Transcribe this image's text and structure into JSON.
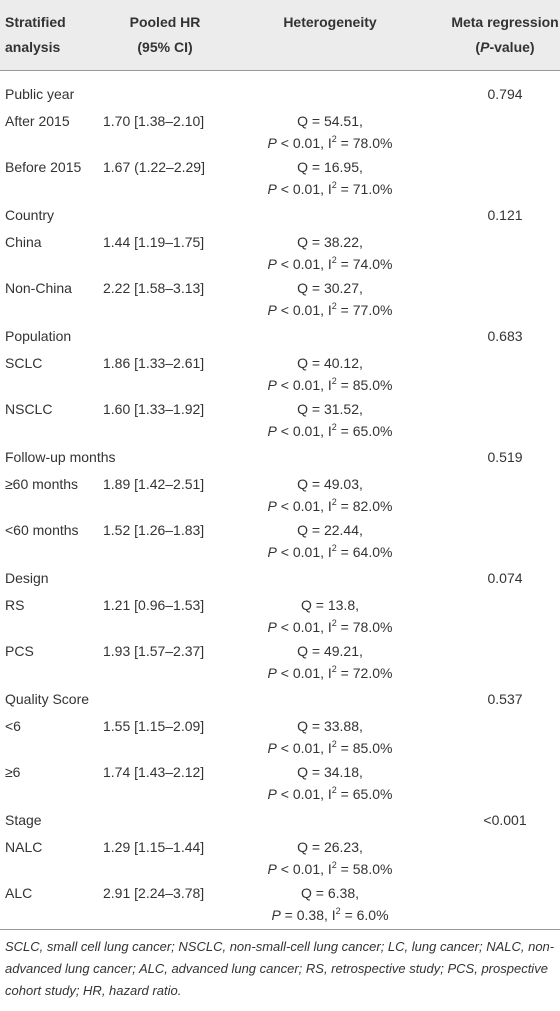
{
  "header": {
    "columns": [
      {
        "lines": [
          "Stratified",
          "analysis"
        ],
        "align": "left"
      },
      {
        "lines": [
          "Pooled HR",
          "(95% CI)"
        ],
        "align": "center"
      },
      {
        "lines": [
          "Heterogeneity"
        ],
        "align": "center"
      },
      {
        "lines": [
          "Meta regression",
          [
            "(",
            {
              "text": "P",
              "style": "italic"
            },
            "-value)"
          ]
        ],
        "align": "center"
      }
    ]
  },
  "table": {
    "groups": [
      {
        "label": "Public year",
        "p_value": "0.794",
        "rows": [
          {
            "label": "After 2015",
            "hr": "1.70 [1.38–2.10]",
            "heterogeneity": [
              "Q = 54.51,",
              [
                {
                  "text": "P",
                  "style": "italic"
                },
                " < 0.01, I",
                {
                  "text": "2",
                  "style": "sup"
                },
                " = 78.0%"
              ]
            ]
          },
          {
            "label": "Before 2015",
            "hr": "1.67 (1.22–2.29]",
            "heterogeneity": [
              "Q = 16.95,",
              [
                {
                  "text": "P",
                  "style": "italic"
                },
                " < 0.01, I",
                {
                  "text": "2",
                  "style": "sup"
                },
                " = 71.0%"
              ]
            ]
          }
        ]
      },
      {
        "label": "Country",
        "p_value": "0.121",
        "rows": [
          {
            "label": "China",
            "hr": "1.44 [1.19–1.75]",
            "heterogeneity": [
              "Q = 38.22,",
              [
                {
                  "text": "P",
                  "style": "italic"
                },
                " < 0.01, I",
                {
                  "text": "2",
                  "style": "sup"
                },
                " = 74.0%"
              ]
            ]
          },
          {
            "label": "Non-China",
            "hr": "2.22 [1.58–3.13]",
            "heterogeneity": [
              "Q = 30.27,",
              [
                {
                  "text": "P",
                  "style": "italic"
                },
                " < 0.01, I",
                {
                  "text": "2",
                  "style": "sup"
                },
                " = 77.0%"
              ]
            ]
          }
        ]
      },
      {
        "label": "Population",
        "p_value": "0.683",
        "rows": [
          {
            "label": "SCLC",
            "hr": "1.86 [1.33–2.61]",
            "heterogeneity": [
              "Q = 40.12,",
              [
                {
                  "text": "P",
                  "style": "italic"
                },
                " < 0.01, I",
                {
                  "text": "2",
                  "style": "sup"
                },
                " = 85.0%"
              ]
            ]
          },
          {
            "label": "NSCLC",
            "hr": "1.60 [1.33–1.92]",
            "heterogeneity": [
              "Q = 31.52,",
              [
                {
                  "text": "P",
                  "style": "italic"
                },
                " < 0.01, I",
                {
                  "text": "2",
                  "style": "sup"
                },
                " = 65.0%"
              ]
            ]
          }
        ]
      },
      {
        "label": "Follow-up months",
        "p_value": "0.519",
        "rows": [
          {
            "label": "≥60 months",
            "hr": "1.89 [1.42–2.51]",
            "heterogeneity": [
              "Q = 49.03,",
              [
                {
                  "text": "P",
                  "style": "italic"
                },
                " < 0.01, I",
                {
                  "text": "2",
                  "style": "sup"
                },
                " = 82.0%"
              ]
            ]
          },
          {
            "label": "<60 months",
            "hr": "1.52 [1.26–1.83]",
            "heterogeneity": [
              "Q = 22.44,",
              [
                {
                  "text": "P",
                  "style": "italic"
                },
                " < 0.01, I",
                {
                  "text": "2",
                  "style": "sup"
                },
                " = 64.0%"
              ]
            ]
          }
        ]
      },
      {
        "label": "Design",
        "p_value": "0.074",
        "rows": [
          {
            "label": "RS",
            "hr": "1.21 [0.96–1.53]",
            "heterogeneity": [
              "Q = 13.8,",
              [
                {
                  "text": "P",
                  "style": "italic"
                },
                " < 0.01, I",
                {
                  "text": "2",
                  "style": "sup"
                },
                " = 78.0%"
              ]
            ]
          },
          {
            "label": "PCS",
            "hr": "1.93 [1.57–2.37]",
            "heterogeneity": [
              "Q = 49.21,",
              [
                {
                  "text": "P",
                  "style": "italic"
                },
                " < 0.01, I",
                {
                  "text": "2",
                  "style": "sup"
                },
                " = 72.0%"
              ]
            ]
          }
        ]
      },
      {
        "label": "Quality Score",
        "p_value": "0.537",
        "rows": [
          {
            "label": "<6",
            "hr": "1.55 [1.15–2.09]",
            "heterogeneity": [
              "Q = 33.88,",
              [
                {
                  "text": "P",
                  "style": "italic"
                },
                " < 0.01, I",
                {
                  "text": "2",
                  "style": "sup"
                },
                " = 85.0%"
              ]
            ]
          },
          {
            "label": "≥6",
            "hr": "1.74 [1.43–2.12]",
            "heterogeneity": [
              "Q = 34.18,",
              [
                {
                  "text": "P",
                  "style": "italic"
                },
                " < 0.01, I",
                {
                  "text": "2",
                  "style": "sup"
                },
                " = 65.0%"
              ]
            ]
          }
        ]
      },
      {
        "label": "Stage",
        "p_value": "<0.001",
        "rows": [
          {
            "label": "NALC",
            "hr": "1.29 [1.15–1.44]",
            "heterogeneity": [
              "Q = 26.23,",
              [
                {
                  "text": "P",
                  "style": "italic"
                },
                " < 0.01, I",
                {
                  "text": "2",
                  "style": "sup"
                },
                " = 58.0%"
              ]
            ]
          },
          {
            "label": "ALC",
            "hr": "2.91 [2.24–3.78]",
            "heterogeneity": [
              "Q = 6.38,",
              [
                {
                  "text": "P",
                  "style": "italic"
                },
                " = 0.38, I",
                {
                  "text": "2",
                  "style": "sup"
                },
                " = 6.0%"
              ]
            ]
          }
        ]
      }
    ]
  },
  "footnote": "SCLC, small cell lung cancer; NSCLC, non-small-cell lung cancer; LC, lung cancer; NALC, non-advanced lung cancer; ALC, advanced lung cancer; RS, retrospective study; PCS, prospective cohort study; HR, hazard ratio."
}
